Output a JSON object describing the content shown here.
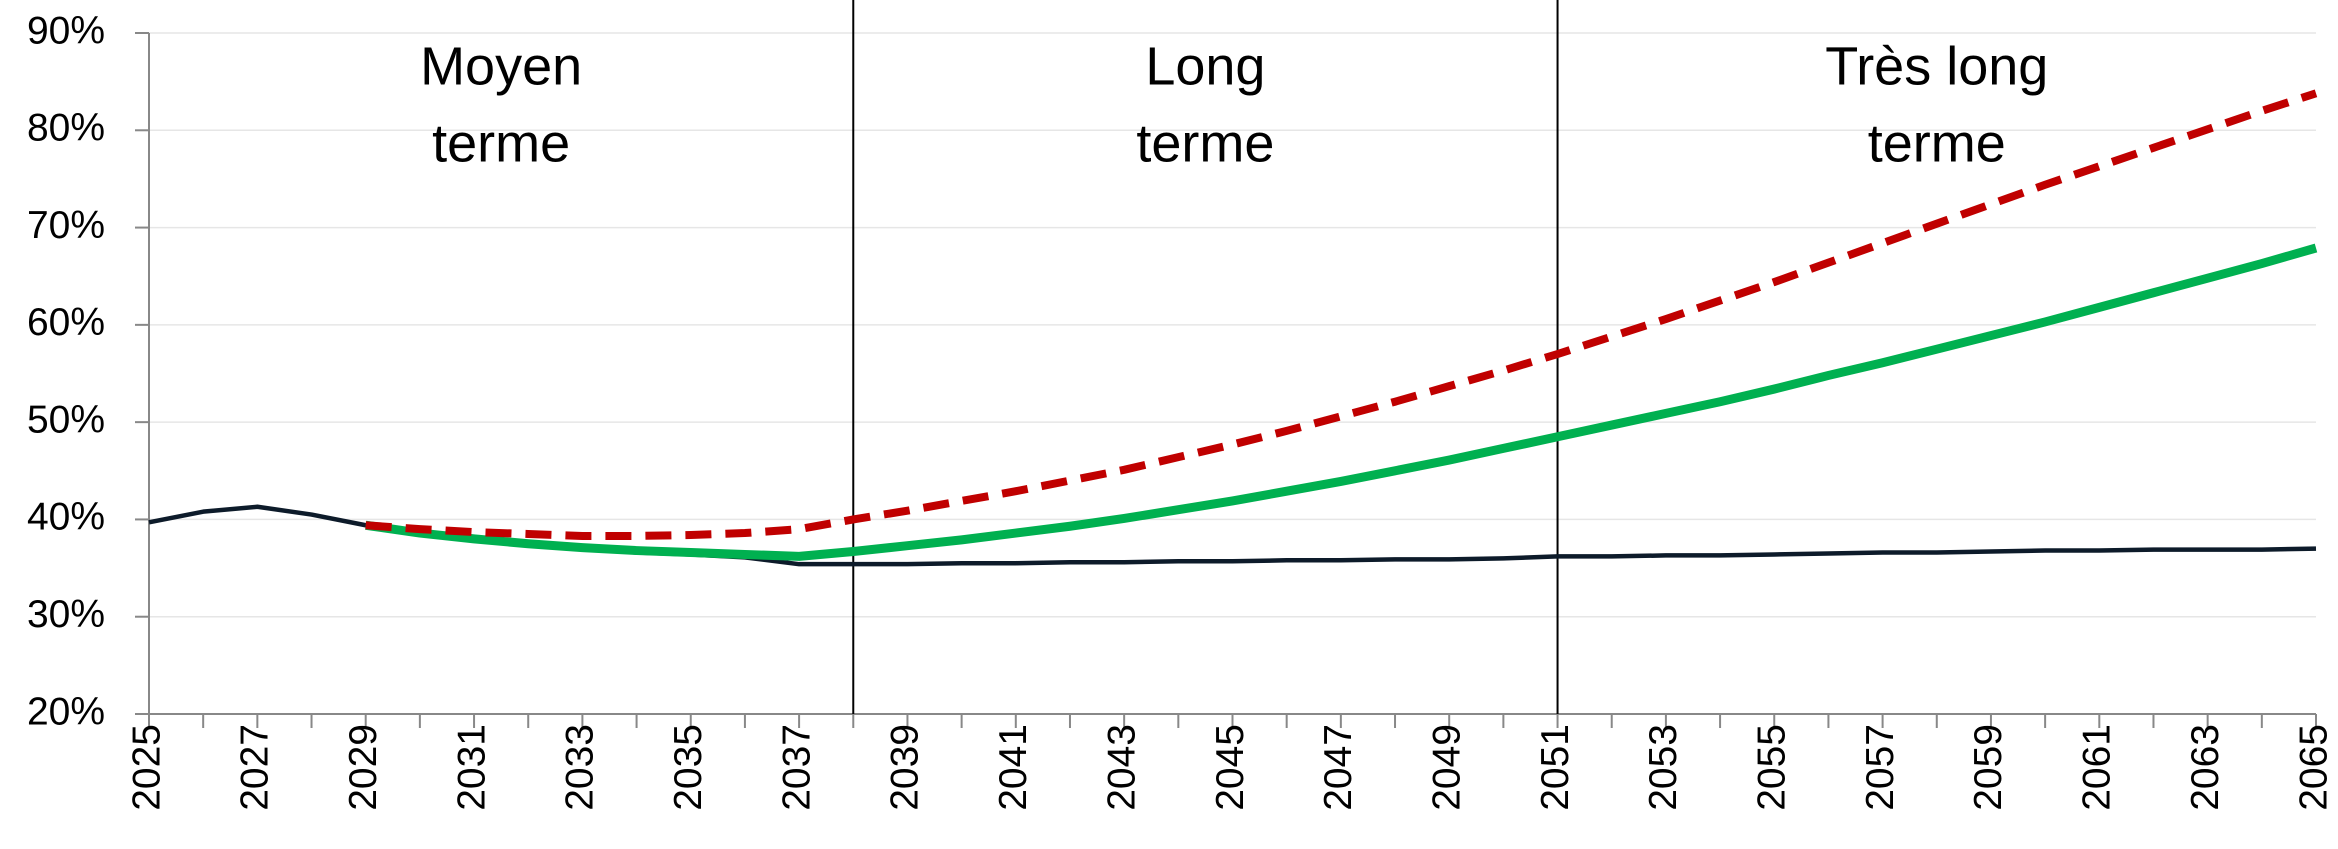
{
  "chart_data": {
    "type": "line",
    "x": [
      2025,
      2026,
      2027,
      2028,
      2029,
      2030,
      2031,
      2032,
      2033,
      2034,
      2035,
      2036,
      2037,
      2038,
      2039,
      2040,
      2041,
      2042,
      2043,
      2044,
      2045,
      2046,
      2047,
      2048,
      2049,
      2050,
      2051,
      2052,
      2053,
      2054,
      2055,
      2056,
      2057,
      2058,
      2059,
      2060,
      2061,
      2062,
      2063,
      2064,
      2065
    ],
    "series": [
      {
        "color": "#0d1b2a",
        "dash": false,
        "values": [
          39.7,
          40.8,
          41.3,
          40.5,
          39.4,
          38.6,
          38.0,
          37.4,
          37.0,
          36.6,
          36.4,
          36.1,
          35.4,
          35.4,
          35.4,
          35.5,
          35.5,
          35.6,
          35.6,
          35.7,
          35.7,
          35.8,
          35.8,
          35.9,
          35.9,
          36.0,
          36.2,
          36.2,
          36.3,
          36.3,
          36.4,
          36.5,
          36.6,
          36.6,
          36.7,
          36.8,
          36.8,
          36.9,
          36.9,
          36.9,
          37.0
        ]
      },
      {
        "color": "#00b050",
        "dash": false,
        "values": [
          null,
          null,
          null,
          null,
          39.4,
          38.6,
          38.0,
          37.5,
          37.1,
          36.8,
          36.6,
          36.4,
          36.2,
          36.7,
          37.3,
          37.9,
          38.6,
          39.3,
          40.1,
          41.0,
          41.9,
          42.9,
          43.9,
          45.0,
          46.1,
          47.3,
          48.5,
          49.7,
          50.9,
          52.1,
          53.4,
          54.8,
          56.1,
          57.5,
          58.9,
          60.3,
          61.8,
          63.3,
          64.8,
          66.3,
          67.9
        ]
      },
      {
        "color": "#c00000",
        "dash": true,
        "values": [
          null,
          null,
          null,
          null,
          39.4,
          39.0,
          38.7,
          38.5,
          38.3,
          38.3,
          38.4,
          38.6,
          39.0,
          40.0,
          40.9,
          41.9,
          42.9,
          44.0,
          45.1,
          46.4,
          47.7,
          49.1,
          50.6,
          52.1,
          53.7,
          55.3,
          57.0,
          58.8,
          60.6,
          62.5,
          64.4,
          66.4,
          68.4,
          70.4,
          72.4,
          74.4,
          76.3,
          78.2,
          80.1,
          82.0,
          83.8
        ]
      }
    ],
    "xlim": [
      2025,
      2065
    ],
    "xticks": [
      2025,
      2027,
      2029,
      2031,
      2033,
      2035,
      2037,
      2039,
      2041,
      2043,
      2045,
      2047,
      2049,
      2051,
      2053,
      2055,
      2057,
      2059,
      2061,
      2063,
      2065
    ],
    "ylim": [
      20,
      90
    ],
    "yticks": [
      {
        "value": 20,
        "label": "20%"
      },
      {
        "value": 30,
        "label": "30%"
      },
      {
        "value": 40,
        "label": "40%"
      },
      {
        "value": 50,
        "label": "50%"
      },
      {
        "value": 60,
        "label": "60%"
      },
      {
        "value": 70,
        "label": "70%"
      },
      {
        "value": 80,
        "label": "80%"
      },
      {
        "value": 90,
        "label": "90%"
      }
    ],
    "grid": true,
    "vlines": [
      2038,
      2051
    ],
    "annotations": [
      {
        "lines": [
          "Moyen",
          "terme"
        ]
      },
      {
        "lines": [
          "Long",
          "terme"
        ]
      },
      {
        "lines": [
          "Très long",
          "terme"
        ]
      }
    ]
  }
}
